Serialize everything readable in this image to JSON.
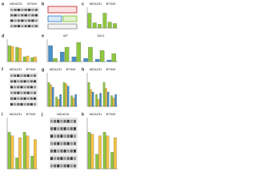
{
  "panels": [
    {
      "label": "a",
      "type": "blot",
      "titles": [
        "MDA231",
        "BT549"
      ]
    },
    {
      "label": "b",
      "type": "diagram"
    },
    {
      "label": "c",
      "type": "bar",
      "titles": [
        "MDA231",
        "BT549"
      ],
      "ylim": [
        0,
        1.4
      ],
      "series": [
        {
          "color": "#8dc63f",
          "values": [
            1,
            0.35,
            0.25,
            1,
            0.4,
            0.3
          ]
        }
      ]
    },
    {
      "label": "d",
      "type": "bar",
      "ylim": [
        0,
        1.4
      ],
      "series": [
        {
          "color": "#8dc63f",
          "values": [
            1,
            0.9,
            0.3,
            0.25
          ]
        },
        {
          "color": "#f5c342",
          "values": [
            0.95,
            0.85,
            0.35,
            0.3
          ]
        }
      ]
    },
    {
      "label": "e",
      "type": "bar",
      "titles": [
        "WT",
        "DKO"
      ],
      "ylim": [
        0,
        1.4
      ],
      "series": [
        {
          "color": "#4a90c8",
          "values": [
            1,
            0.6,
            0.3,
            0.2,
            0.15,
            0.1
          ]
        },
        {
          "color": "#8dc63f",
          "values": [
            0.2,
            0.9,
            1.2,
            0.9,
            0.7,
            0.5
          ]
        }
      ]
    },
    {
      "label": "f",
      "type": "blot",
      "titles": [
        "MDA231",
        "BT549"
      ]
    },
    {
      "label": "g",
      "type": "bar",
      "titles": [
        "MDA231",
        "BT549"
      ],
      "ylim": [
        0,
        1.4
      ],
      "series": [
        {
          "color": "#8dc63f",
          "values": [
            1,
            0.4,
            1,
            0.45
          ]
        },
        {
          "color": "#f5c342",
          "values": [
            0.9,
            0.3,
            0.95,
            0.35
          ]
        },
        {
          "color": "#4a90c8",
          "values": [
            0.8,
            0.5,
            0.85,
            0.5
          ]
        }
      ]
    },
    {
      "label": "h",
      "type": "bar",
      "titles": [
        "MDA231",
        "BT549"
      ],
      "ylim": [
        0,
        1.4
      ],
      "series": [
        {
          "color": "#8dc63f",
          "values": [
            1,
            0.5,
            1,
            0.45
          ]
        },
        {
          "color": "#f5c342",
          "values": [
            0.7,
            0.3,
            0.75,
            0.35
          ]
        },
        {
          "color": "#4a90c8",
          "values": [
            0.6,
            0.55,
            0.6,
            0.5
          ]
        }
      ]
    },
    {
      "label": "i",
      "type": "bar",
      "titles": [
        "MDA231",
        "BT549"
      ],
      "ylim": [
        0,
        1.4
      ],
      "series": [
        {
          "color": "#8dc63f",
          "values": [
            1,
            0.3,
            1,
            0.35
          ]
        },
        {
          "color": "#f5c342",
          "values": [
            0.9,
            0.85,
            0.9,
            0.8
          ]
        }
      ]
    },
    {
      "label": "j",
      "type": "blot",
      "titles": [
        "MDA231"
      ]
    },
    {
      "label": "k",
      "type": "bar",
      "titles": [
        "MDA231",
        "BT549"
      ],
      "ylim": [
        0,
        1.4
      ],
      "series": [
        {
          "color": "#8dc63f",
          "values": [
            1,
            0.4,
            1,
            0.45
          ]
        },
        {
          "color": "#f5c342",
          "values": [
            0.95,
            0.9,
            0.9,
            0.85
          ]
        }
      ]
    }
  ]
}
